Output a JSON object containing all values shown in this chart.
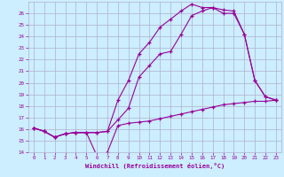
{
  "xlabel": "Windchill (Refroidissement éolien,°C)",
  "background_color": "#cceeff",
  "grid_color": "#b0b0cc",
  "line_color": "#990099",
  "xlim": [
    -0.5,
    23.5
  ],
  "ylim": [
    14,
    27
  ],
  "xtick_labels": [
    "0",
    "1",
    "2",
    "3",
    "4",
    "5",
    "6",
    "7",
    "8",
    "9",
    "10",
    "11",
    "12",
    "13",
    "14",
    "15",
    "16",
    "17",
    "18",
    "19",
    "20",
    "21",
    "22",
    "23"
  ],
  "xtick_positions": [
    0,
    1,
    2,
    3,
    4,
    5,
    6,
    7,
    8,
    9,
    10,
    11,
    12,
    13,
    14,
    15,
    16,
    17,
    18,
    19,
    20,
    21,
    22,
    23
  ],
  "ytick_positions": [
    14,
    15,
    16,
    17,
    18,
    19,
    20,
    21,
    22,
    23,
    24,
    25,
    26
  ],
  "series": [
    {
      "x": [
        0,
        1,
        2,
        3,
        4,
        5,
        6,
        7,
        8,
        9,
        10,
        11,
        12,
        13,
        14,
        15,
        16,
        17,
        18,
        19,
        20,
        21,
        22,
        23
      ],
      "y": [
        16.1,
        15.8,
        15.3,
        15.6,
        15.7,
        15.7,
        13.7,
        14.0,
        16.3,
        16.5,
        16.6,
        16.7,
        16.9,
        17.1,
        17.3,
        17.5,
        17.7,
        17.9,
        18.1,
        18.2,
        18.3,
        18.4,
        18.4,
        18.5
      ]
    },
    {
      "x": [
        0,
        1,
        2,
        3,
        4,
        5,
        6,
        7,
        8,
        9,
        10,
        11,
        12,
        13,
        14,
        15,
        16,
        17,
        18,
        19,
        20,
        21,
        22,
        23
      ],
      "y": [
        16.1,
        15.8,
        15.3,
        15.6,
        15.7,
        15.7,
        15.7,
        15.8,
        16.8,
        17.8,
        20.5,
        21.5,
        22.5,
        22.7,
        24.2,
        25.8,
        26.2,
        26.5,
        26.0,
        26.0,
        24.2,
        20.2,
        18.8,
        18.5
      ]
    },
    {
      "x": [
        0,
        1,
        2,
        3,
        4,
        5,
        6,
        7,
        8,
        9,
        10,
        11,
        12,
        13,
        14,
        15,
        16,
        17,
        18,
        19,
        20,
        21,
        22,
        23
      ],
      "y": [
        16.1,
        15.8,
        15.3,
        15.6,
        15.7,
        15.7,
        15.7,
        15.8,
        18.5,
        20.2,
        22.5,
        23.5,
        24.8,
        25.5,
        26.2,
        26.8,
        26.5,
        26.5,
        26.3,
        26.2,
        24.2,
        20.2,
        18.8,
        18.5
      ]
    }
  ]
}
